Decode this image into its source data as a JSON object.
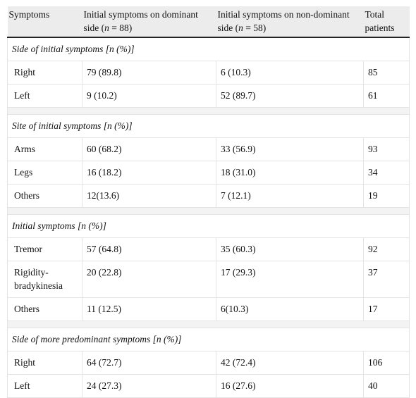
{
  "header": {
    "col1": "Symptoms",
    "col2_a": "Initial symptoms on dominant side (",
    "col2_n": "n",
    "col2_b": " = 88)",
    "col3_a": "Initial symptoms on non-dominant side (",
    "col3_n": "n",
    "col3_b": " = 58)",
    "col4": "Total patients"
  },
  "sections": [
    {
      "title": "Side of initial symptoms [n (%)]",
      "rows": [
        {
          "label": "Right",
          "dominant": "79 (89.8)",
          "nondominant": "6 (10.3)",
          "total": "85"
        },
        {
          "label": "Left",
          "dominant": "9 (10.2)",
          "nondominant": "52 (89.7)",
          "total": "61"
        }
      ]
    },
    {
      "title": "Site of initial symptoms [n (%)]",
      "rows": [
        {
          "label": "Arms",
          "dominant": "60 (68.2)",
          "nondominant": "33 (56.9)",
          "total": "93"
        },
        {
          "label": "Legs",
          "dominant": "16 (18.2)",
          "nondominant": "18 (31.0)",
          "total": "34"
        },
        {
          "label": "Others",
          "dominant": "12(13.6)",
          "nondominant": "7 (12.1)",
          "total": "19"
        }
      ]
    },
    {
      "title": "Initial symptoms [n (%)]",
      "rows": [
        {
          "label": "Tremor",
          "dominant": "57 (64.8)",
          "nondominant": "35 (60.3)",
          "total": "92"
        },
        {
          "label": "Rigidity-bradykinesia",
          "dominant": "20 (22.8)",
          "nondominant": "17 (29.3)",
          "total": "37"
        },
        {
          "label": "Others",
          "dominant": "11 (12.5)",
          "nondominant": "6(10.3)",
          "total": "17"
        }
      ]
    },
    {
      "title": "Side of more predominant symptoms [n (%)]",
      "rows": [
        {
          "label": "Right",
          "dominant": "64 (72.7)",
          "nondominant": "42 (72.4)",
          "total": "106"
        },
        {
          "label": "Left",
          "dominant": "24 (27.3)",
          "nondominant": "16 (27.6)",
          "total": "40"
        }
      ]
    }
  ]
}
